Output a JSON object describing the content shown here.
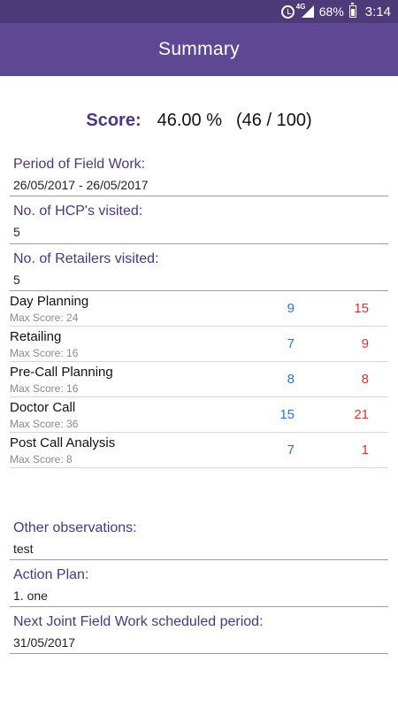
{
  "status_bar": {
    "network": "4G",
    "battery": "68%",
    "time": "3:14",
    "icons": [
      "alarm-icon",
      "signal-icon",
      "battery-icon"
    ]
  },
  "app_bar": {
    "title": "Summary"
  },
  "score": {
    "label": "Score:",
    "percent": "46.00 %",
    "fraction": "(46 / 100)"
  },
  "period": {
    "label": "Period of Field Work:",
    "value": "26/05/2017 - 26/05/2017"
  },
  "hcp_visited": {
    "label": "No. of HCP's visited:",
    "value": "5"
  },
  "retailers_visited": {
    "label": "No. of Retailers visited:",
    "value": "5"
  },
  "score_items": [
    {
      "name": "Day Planning",
      "max": "Max Score: 24",
      "scored": "9",
      "total": "15"
    },
    {
      "name": "Retailing",
      "max": "Max Score: 16",
      "scored": "7",
      "total": "9"
    },
    {
      "name": "Pre-Call Planning",
      "max": "Max Score: 16",
      "scored": "8",
      "total": "8"
    },
    {
      "name": "Doctor Call",
      "max": "Max Score: 36",
      "scored": "15",
      "total": "21"
    },
    {
      "name": "Post Call Analysis",
      "max": "Max Score: 8",
      "scored": "7",
      "total": "1"
    }
  ],
  "observations": {
    "label": "Other observations:",
    "value": "test"
  },
  "action_plan": {
    "label": "Action Plan:",
    "value": "1. one"
  },
  "next_joint": {
    "label": "Next Joint Field Work scheduled period:",
    "value": "31/05/2017"
  },
  "colors": {
    "status_bar": "#4d3a78",
    "app_bar": "#5e4793",
    "label_purple": "#4b3686",
    "scored_blue": "#2f73d8",
    "total_red": "#d93535"
  }
}
